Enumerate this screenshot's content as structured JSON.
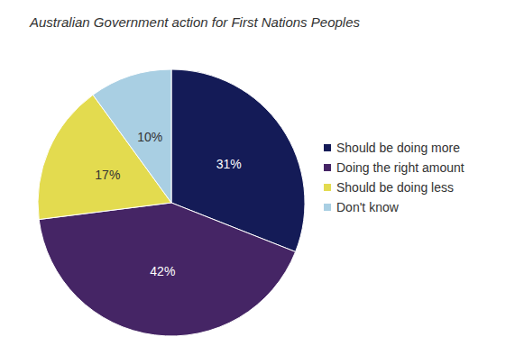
{
  "chart_data": {
    "type": "pie",
    "title": "Australian Government action for First Nations Peoples",
    "categories": [
      "Should be doing more",
      "Doing the right amount",
      "Should be doing less",
      "Don't know"
    ],
    "values": [
      31,
      42,
      17,
      10
    ],
    "value_labels": [
      "31%",
      "42%",
      "17%",
      "10%"
    ],
    "colors": [
      "#141b57",
      "#452565",
      "#e3db4f",
      "#a9cfe3"
    ],
    "data_labels": true,
    "legend": "right"
  }
}
